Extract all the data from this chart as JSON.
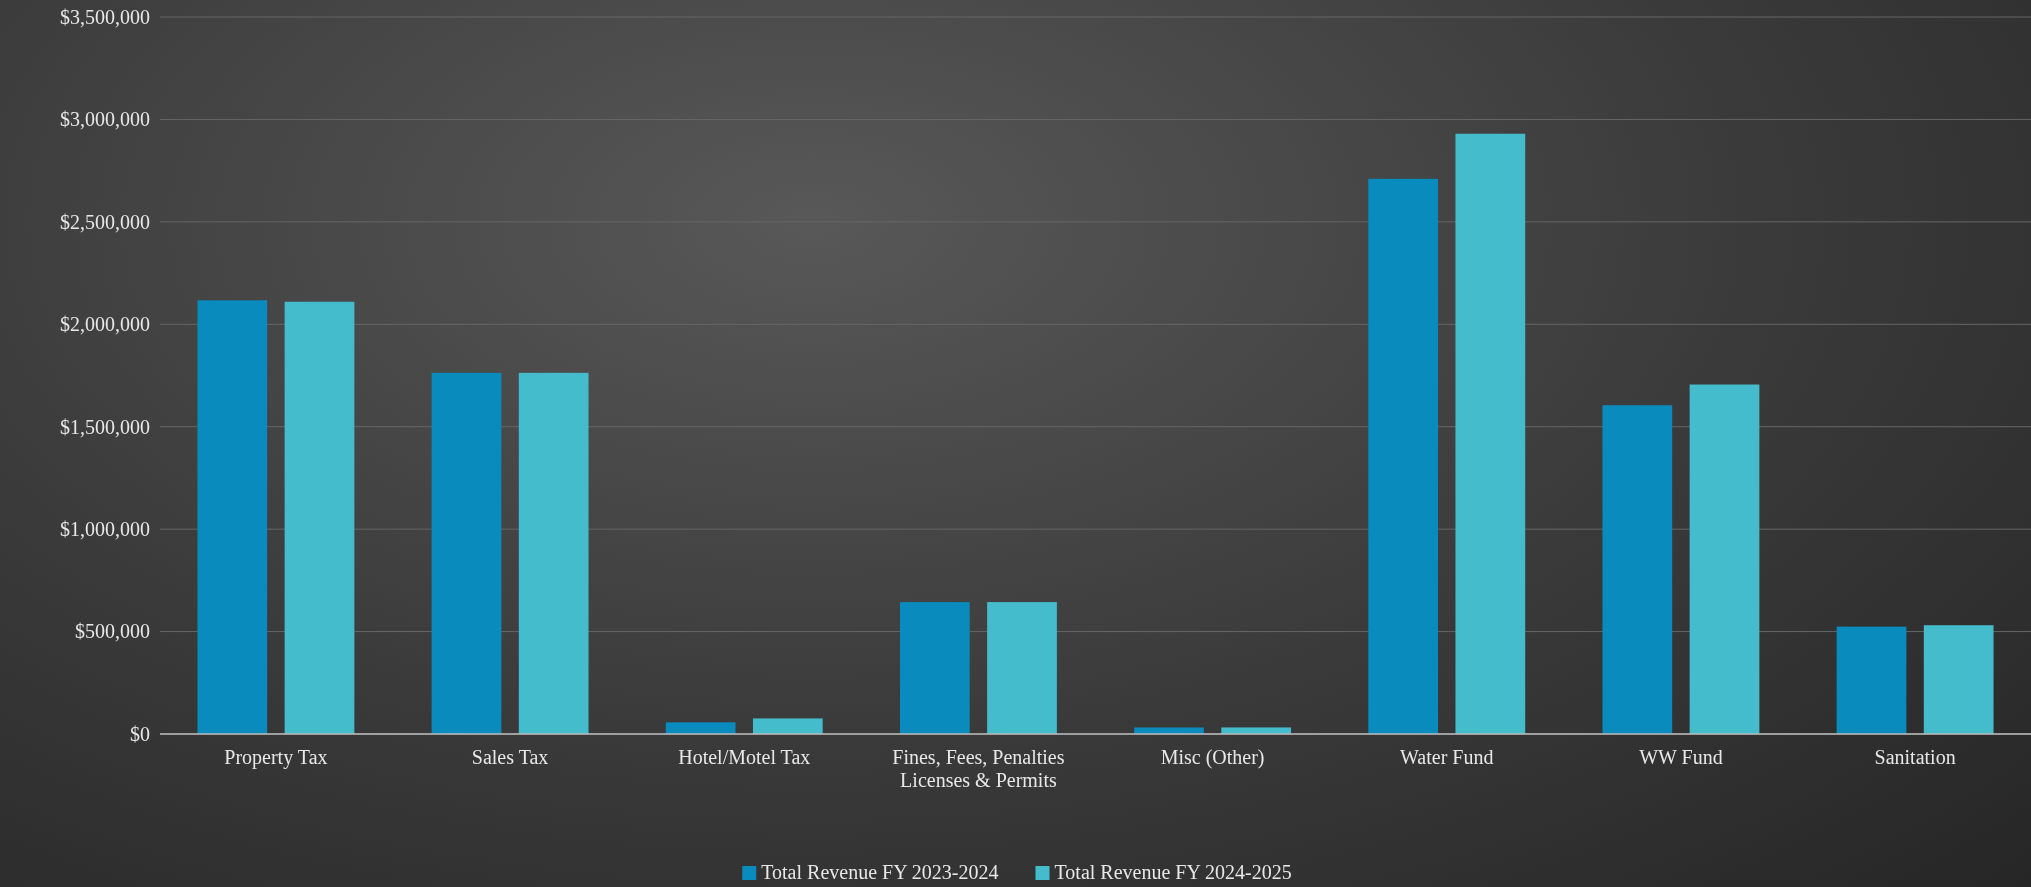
{
  "chart_data": {
    "type": "bar",
    "categories": [
      "Property Tax",
      "Sales Tax",
      "Hotel/Motel Tax",
      "Fines, Fees, Penalties Licenses & Permits",
      "Misc (Other)",
      "Water Fund",
      "WW Fund",
      "Sanitation"
    ],
    "series": [
      {
        "name": "Total Revenue FY 2023-2024",
        "color": "#0a8bbd",
        "values": [
          2117000,
          1763000,
          57000,
          644000,
          32000,
          2710000,
          1605000,
          524000
        ]
      },
      {
        "name": "Total Revenue FY 2024-2025",
        "color": "#45bccb",
        "values": [
          2110000,
          1763000,
          76000,
          644000,
          32000,
          2930000,
          1706000,
          531000
        ]
      }
    ],
    "ylim": [
      0,
      3500000
    ],
    "yticks": [
      {
        "value": 0,
        "label": "$0"
      },
      {
        "value": 500000,
        "label": "$500,000"
      },
      {
        "value": 1000000,
        "label": "$1,000,000"
      },
      {
        "value": 1500000,
        "label": "$1,500,000"
      },
      {
        "value": 2000000,
        "label": "$2,000,000"
      },
      {
        "value": 2500000,
        "label": "$2,500,000"
      },
      {
        "value": 3000000,
        "label": "$3,000,000"
      },
      {
        "value": 3500000,
        "label": "$3,500,000"
      }
    ],
    "grid": "y",
    "legend": "bottom"
  }
}
